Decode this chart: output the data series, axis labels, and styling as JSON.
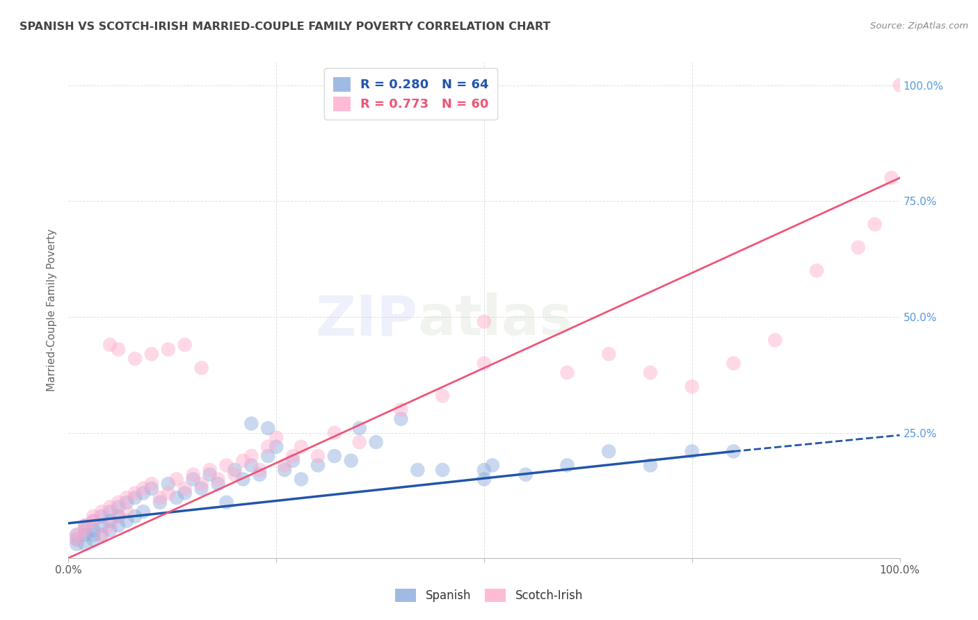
{
  "title": "SPANISH VS SCOTCH-IRISH MARRIED-COUPLE FAMILY POVERTY CORRELATION CHART",
  "source": "Source: ZipAtlas.com",
  "ylabel": "Married-Couple Family Poverty",
  "xlim": [
    0,
    100
  ],
  "ylim": [
    -2,
    105
  ],
  "xticks": [
    0,
    25,
    50,
    75,
    100
  ],
  "xticklabels": [
    "0.0%",
    "",
    "",
    "",
    "100.0%"
  ],
  "yticks": [
    25,
    50,
    75,
    100
  ],
  "yticklabels": [
    "25.0%",
    "50.0%",
    "75.0%",
    "100.0%"
  ],
  "legend_r1": "R = 0.280",
  "legend_n1": "N = 64",
  "legend_r2": "R = 0.773",
  "legend_n2": "N = 60",
  "watermark_zip": "ZIP",
  "watermark_atlas": "atlas",
  "background_color": "#ffffff",
  "grid_color": "#cccccc",
  "title_color": "#444444",
  "source_color": "#888888",
  "blue_color": "#88aadd",
  "pink_color": "#ffaacc",
  "blue_line_color": "#2255aa",
  "pink_line_color": "#ee5577",
  "blue_trend_x0": 0,
  "blue_trend_x1": 80,
  "blue_trend_y0": 5.5,
  "blue_trend_y1": 21,
  "pink_trend_x0": 0,
  "pink_trend_x1": 100,
  "pink_trend_y0": -2,
  "pink_trend_y1": 80,
  "dashed_x0": 80,
  "dashed_x1": 100,
  "dashed_y0": 21,
  "dashed_y1": 24.5,
  "spanish_x": [
    1,
    1,
    1,
    2,
    2,
    2,
    2,
    3,
    3,
    3,
    3,
    4,
    4,
    4,
    5,
    5,
    5,
    6,
    6,
    6,
    7,
    7,
    8,
    8,
    9,
    9,
    10,
    11,
    12,
    13,
    14,
    15,
    16,
    17,
    18,
    19,
    20,
    21,
    22,
    23,
    24,
    25,
    26,
    27,
    28,
    30,
    32,
    34,
    35,
    37,
    40,
    42,
    45,
    50,
    55,
    60,
    65,
    70,
    75,
    80,
    50,
    51,
    22,
    24
  ],
  "spanish_y": [
    1,
    2,
    3,
    1,
    3,
    4,
    5,
    2,
    4,
    6,
    3,
    5,
    7,
    3,
    6,
    8,
    4,
    9,
    7,
    5,
    10,
    6,
    11,
    7,
    12,
    8,
    13,
    10,
    14,
    11,
    12,
    15,
    13,
    16,
    14,
    10,
    17,
    15,
    18,
    16,
    20,
    22,
    17,
    19,
    15,
    18,
    20,
    19,
    26,
    23,
    28,
    17,
    17,
    15,
    16,
    18,
    21,
    18,
    21,
    21,
    17,
    18,
    27,
    26
  ],
  "scotch_x": [
    1,
    1,
    2,
    2,
    3,
    3,
    4,
    4,
    5,
    5,
    6,
    6,
    7,
    7,
    8,
    9,
    10,
    11,
    12,
    13,
    14,
    15,
    16,
    17,
    18,
    19,
    20,
    21,
    22,
    23,
    24,
    25,
    26,
    27,
    28,
    30,
    32,
    35,
    40,
    45,
    50,
    50,
    60,
    65,
    70,
    75,
    80,
    85,
    90,
    95,
    97,
    99,
    100,
    5,
    6,
    8,
    10,
    12,
    14,
    16
  ],
  "scotch_y": [
    2,
    3,
    4,
    5,
    6,
    7,
    3,
    8,
    5,
    9,
    10,
    7,
    11,
    8,
    12,
    13,
    14,
    11,
    12,
    15,
    13,
    16,
    14,
    17,
    15,
    18,
    16,
    19,
    20,
    17,
    22,
    24,
    18,
    20,
    22,
    20,
    25,
    23,
    30,
    33,
    40,
    49,
    38,
    42,
    38,
    35,
    40,
    45,
    60,
    65,
    70,
    80,
    100,
    44,
    43,
    41,
    42,
    43,
    44,
    39
  ],
  "right_ytick_color": "#5599dd"
}
